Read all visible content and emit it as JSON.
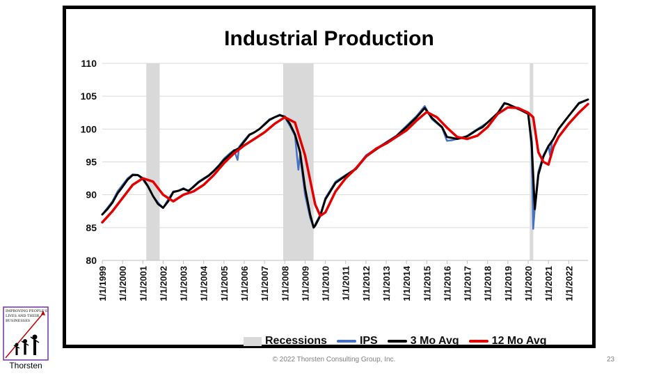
{
  "chart_data": {
    "type": "line",
    "title": "Industrial Production",
    "ylim": [
      80,
      110
    ],
    "yticks": [
      80,
      85,
      90,
      95,
      100,
      105,
      110
    ],
    "xlim": [
      1999.0,
      2022.95
    ],
    "xticks": [
      "1/1/1999",
      "1/1/2000",
      "1/1/2001",
      "1/1/2002",
      "1/1/2003",
      "1/1/2004",
      "1/1/2005",
      "1/1/2006",
      "1/1/2007",
      "1/1/2008",
      "1/1/2009",
      "1/1/2010",
      "1/1/2011",
      "1/1/2012",
      "1/1/2013",
      "1/1/2014",
      "1/1/2015",
      "1/1/2016",
      "1/1/2017",
      "1/1/2018",
      "1/1/2019",
      "1/1/2020",
      "1/1/2021",
      "1/1/2022"
    ],
    "grid": "horizontal",
    "legend_position": "bottom",
    "recessions": [
      {
        "start": 2001.17,
        "end": 2001.83
      },
      {
        "start": 2007.92,
        "end": 2009.42
      },
      {
        "start": 2020.08,
        "end": 2020.25
      }
    ],
    "series": [
      {
        "name": "Recessions",
        "color": "#d9d9d9",
        "kind": "shade"
      },
      {
        "name": "IPS",
        "color": "#4472c4",
        "x": [
          1999.0,
          1999.25,
          1999.5,
          1999.75,
          2000.0,
          2000.25,
          2000.5,
          2000.75,
          2001.0,
          2001.25,
          2001.5,
          2001.75,
          2002.0,
          2002.25,
          2002.5,
          2002.75,
          2003.0,
          2003.25,
          2003.5,
          2003.75,
          2004.0,
          2004.25,
          2004.5,
          2004.75,
          2005.0,
          2005.25,
          2005.5,
          2005.67,
          2005.75,
          2006.0,
          2006.25,
          2006.5,
          2006.75,
          2007.0,
          2007.25,
          2007.5,
          2007.75,
          2008.0,
          2008.25,
          2008.5,
          2008.67,
          2008.75,
          2009.0,
          2009.25,
          2009.42,
          2009.5,
          2009.75,
          2010.0,
          2010.5,
          2011.0,
          2011.5,
          2012.0,
          2012.5,
          2013.0,
          2013.5,
          2014.0,
          2014.5,
          2014.9,
          2015.25,
          2015.75,
          2016.0,
          2016.25,
          2016.5,
          2016.75,
          2017.0,
          2017.5,
          2017.75,
          2018.0,
          2018.5,
          2018.83,
          2019.0,
          2019.5,
          2020.0,
          2020.17,
          2020.25,
          2020.33,
          2020.5,
          2020.75,
          2021.0,
          2021.08,
          2021.17,
          2021.5,
          2022.0,
          2022.5,
          2022.95
        ],
        "values": [
          87.0,
          88.0,
          89.0,
          90.5,
          91.5,
          92.5,
          93.1,
          93.0,
          92.3,
          91.2,
          89.8,
          88.8,
          88.0,
          89.3,
          90.5,
          90.6,
          91.0,
          90.5,
          91.3,
          92.0,
          92.5,
          93.0,
          93.7,
          94.5,
          95.5,
          96.2,
          96.8,
          95.3,
          97.3,
          98.3,
          99.2,
          99.5,
          100.0,
          100.8,
          101.5,
          101.8,
          102.2,
          101.8,
          100.5,
          99.0,
          93.8,
          96.0,
          90.0,
          86.5,
          85.0,
          85.5,
          87.0,
          89.5,
          92.0,
          93.0,
          94.0,
          96.0,
          97.0,
          98.0,
          99.0,
          100.5,
          102.0,
          103.5,
          101.5,
          100.2,
          98.2,
          98.3,
          98.5,
          98.6,
          99.0,
          100.0,
          100.5,
          101.0,
          102.5,
          104.0,
          103.8,
          103.0,
          102.5,
          97.0,
          84.8,
          88.0,
          93.5,
          96.0,
          97.5,
          96.0,
          98.0,
          100.0,
          102.0,
          104.0,
          104.5
        ]
      },
      {
        "name": "3 Mo Avg",
        "color": "#000000",
        "x": [
          1999.0,
          1999.25,
          1999.5,
          1999.75,
          2000.0,
          2000.25,
          2000.5,
          2000.75,
          2001.0,
          2001.25,
          2001.5,
          2001.75,
          2002.0,
          2002.25,
          2002.5,
          2002.75,
          2003.0,
          2003.25,
          2003.5,
          2003.75,
          2004.0,
          2004.25,
          2004.5,
          2004.75,
          2005.0,
          2005.25,
          2005.5,
          2005.75,
          2006.0,
          2006.25,
          2006.5,
          2006.75,
          2007.0,
          2007.25,
          2007.5,
          2007.75,
          2008.0,
          2008.25,
          2008.5,
          2008.75,
          2009.0,
          2009.25,
          2009.42,
          2009.5,
          2009.75,
          2010.0,
          2010.5,
          2011.0,
          2011.5,
          2012.0,
          2012.5,
          2013.0,
          2013.5,
          2014.0,
          2014.5,
          2014.9,
          2015.25,
          2015.75,
          2016.0,
          2016.5,
          2017.0,
          2017.5,
          2017.75,
          2018.0,
          2018.5,
          2018.83,
          2019.0,
          2019.5,
          2020.0,
          2020.17,
          2020.33,
          2020.5,
          2020.75,
          2021.0,
          2021.25,
          2021.5,
          2022.0,
          2022.5,
          2022.95
        ],
        "values": [
          87.0,
          87.8,
          88.8,
          90.2,
          91.2,
          92.3,
          93.0,
          93.0,
          92.5,
          91.3,
          89.8,
          88.6,
          88.0,
          89.0,
          90.4,
          90.6,
          90.9,
          90.6,
          91.2,
          91.9,
          92.4,
          92.9,
          93.6,
          94.4,
          95.3,
          96.0,
          96.7,
          97.1,
          98.1,
          99.1,
          99.5,
          100.0,
          100.7,
          101.4,
          101.8,
          102.1,
          101.9,
          100.8,
          99.2,
          96.5,
          91.0,
          87.0,
          85.0,
          85.3,
          86.8,
          89.3,
          91.8,
          92.9,
          93.9,
          95.8,
          96.9,
          97.9,
          98.9,
          100.3,
          101.8,
          103.2,
          101.7,
          100.3,
          98.8,
          98.5,
          98.9,
          99.9,
          100.3,
          101.0,
          102.4,
          103.9,
          103.8,
          103.1,
          102.3,
          98.0,
          87.8,
          93.0,
          95.8,
          97.4,
          98.5,
          100.0,
          102.0,
          103.9,
          104.5
        ]
      },
      {
        "name": "12 Mo Avg",
        "color": "#e30000",
        "x": [
          1999.0,
          1999.5,
          2000.0,
          2000.5,
          2001.0,
          2001.5,
          2002.0,
          2002.5,
          2003.0,
          2003.5,
          2004.0,
          2004.5,
          2005.0,
          2005.5,
          2006.0,
          2006.5,
          2007.0,
          2007.5,
          2008.0,
          2008.5,
          2009.0,
          2009.5,
          2009.75,
          2010.0,
          2010.5,
          2011.0,
          2011.5,
          2012.0,
          2012.5,
          2013.0,
          2013.5,
          2014.0,
          2014.5,
          2015.0,
          2015.5,
          2016.0,
          2016.5,
          2017.0,
          2017.5,
          2018.0,
          2018.5,
          2019.0,
          2019.5,
          2020.0,
          2020.25,
          2020.5,
          2020.75,
          2021.0,
          2021.25,
          2021.5,
          2022.0,
          2022.5,
          2022.95
        ],
        "values": [
          85.8,
          87.5,
          89.5,
          91.5,
          92.5,
          92.0,
          90.0,
          89.0,
          90.0,
          90.5,
          91.5,
          93.0,
          94.8,
          96.3,
          97.5,
          98.5,
          99.5,
          100.8,
          101.8,
          101.0,
          96.0,
          88.5,
          86.8,
          87.3,
          90.5,
          92.5,
          94.0,
          95.8,
          97.0,
          97.8,
          98.8,
          99.8,
          101.3,
          102.6,
          101.8,
          100.2,
          98.8,
          98.5,
          99.0,
          100.3,
          102.3,
          103.3,
          103.2,
          102.5,
          101.8,
          96.5,
          95.0,
          94.6,
          97.3,
          98.8,
          100.8,
          102.5,
          103.8
        ]
      }
    ]
  },
  "legend": [
    {
      "label": "Recessions",
      "kind": "box",
      "color": "#d9d9d9"
    },
    {
      "label": "IPS",
      "kind": "line",
      "color": "#4472c4"
    },
    {
      "label": "3 Mo Avg",
      "kind": "line",
      "color": "#000000"
    },
    {
      "label": "12 Mo Avg",
      "kind": "line",
      "color": "#e30000"
    }
  ],
  "footer": "© 2022 Thorsten Consulting Group, Inc.",
  "slide_number": "23",
  "logo": {
    "text": "Thorsten",
    "tagline": "Improving People's Lives and Their Businesses"
  }
}
